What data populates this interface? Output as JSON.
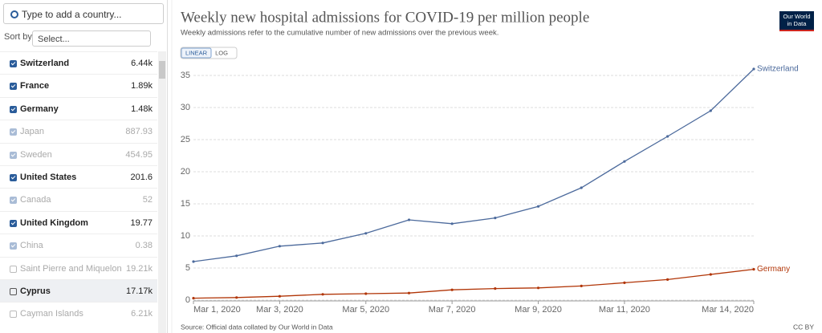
{
  "search_placeholder": "Type to add a country...",
  "sort": {
    "label": "Sort by",
    "placeholder": "Select..."
  },
  "countries": [
    {
      "name": "Switzerland",
      "value": "6.44k",
      "checked": true,
      "muted": false
    },
    {
      "name": "France",
      "value": "1.89k",
      "checked": true,
      "muted": false
    },
    {
      "name": "Germany",
      "value": "1.48k",
      "checked": true,
      "muted": false
    },
    {
      "name": "Japan",
      "value": "887.93",
      "checked": true,
      "muted": true
    },
    {
      "name": "Sweden",
      "value": "454.95",
      "checked": true,
      "muted": true
    },
    {
      "name": "United States",
      "value": "201.6",
      "checked": true,
      "muted": false
    },
    {
      "name": "Canada",
      "value": "52",
      "checked": true,
      "muted": true
    },
    {
      "name": "United Kingdom",
      "value": "19.77",
      "checked": true,
      "muted": false
    },
    {
      "name": "China",
      "value": "0.38",
      "checked": true,
      "muted": true
    },
    {
      "name": "Saint Pierre and Miquelon",
      "value": "19.21k",
      "checked": false,
      "muted": true
    },
    {
      "name": "Cyprus",
      "value": "17.17k",
      "checked": false,
      "muted": false
    },
    {
      "name": "Cayman Islands",
      "value": "6.21k",
      "checked": false,
      "muted": true
    }
  ],
  "logo": [
    "Our World",
    "in Data"
  ],
  "scale_buttons": [
    "LINEAR",
    "LOG"
  ],
  "source": "Source: Official data collated by Our World in Data",
  "license": "CC BY",
  "chart_data": {
    "type": "line",
    "title": "Weekly new hospital admissions for COVID-19 per million people",
    "subtitle": "Weekly admissions refer to the cumulative number of new admissions over the previous week.",
    "categories": [
      "Mar 1, 2020",
      null,
      "Mar 3, 2020",
      null,
      "Mar 5, 2020",
      null,
      "Mar 7, 2020",
      null,
      "Mar 9, 2020",
      null,
      "Mar 11, 2020",
      null,
      null,
      "Mar 14, 2020"
    ],
    "series": [
      {
        "name": "Switzerland",
        "color": "#4c6a9c",
        "values": [
          6.0,
          6.9,
          8.4,
          8.9,
          10.4,
          12.5,
          11.9,
          12.8,
          14.6,
          17.5,
          21.6,
          25.5,
          29.5,
          36.0
        ]
      },
      {
        "name": "Germany",
        "color": "#b13507",
        "values": [
          0.3,
          0.4,
          0.6,
          0.9,
          1.0,
          1.1,
          1.6,
          1.8,
          1.9,
          2.2,
          2.7,
          3.2,
          4.0,
          4.8
        ]
      }
    ],
    "ylim": [
      0,
      36
    ],
    "yticks": [
      0,
      5,
      10,
      15,
      20,
      25,
      30,
      35
    ],
    "grid": true
  }
}
